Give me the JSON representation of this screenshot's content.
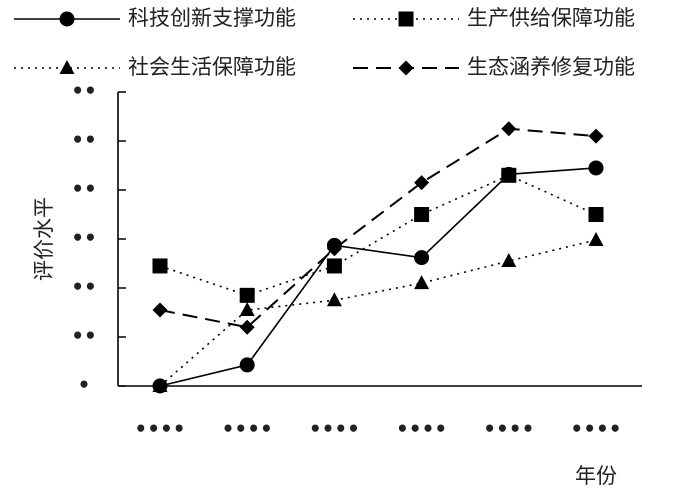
{
  "chart_data": {
    "type": "line",
    "categories": [
      "••••",
      "••••",
      "••••",
      "••••",
      "••••",
      "••••"
    ],
    "xlabel": "年份",
    "ylabel": "评价水平",
    "ytick_labels": [
      "•",
      "••",
      "••",
      "••",
      "••",
      "••",
      "••"
    ],
    "ylim": [
      0,
      6
    ],
    "grid": false,
    "legend_position": "top",
    "series": [
      {
        "name": "科技创新支撑功能",
        "marker": "circle",
        "dash": "solid",
        "values": [
          0.0,
          0.43,
          2.87,
          2.62,
          4.32,
          4.45
        ]
      },
      {
        "name": "生产供给保障功能",
        "marker": "square",
        "dash": "dotted",
        "values": [
          2.45,
          1.85,
          2.45,
          3.5,
          4.3,
          3.5
        ]
      },
      {
        "name": "社会生活保障功能",
        "marker": "triangle",
        "dash": "dotted",
        "values": [
          0.0,
          1.55,
          1.75,
          2.1,
          2.55,
          2.98
        ]
      },
      {
        "name": "生态涵养修复功能",
        "marker": "diamond",
        "dash": "dashed",
        "values": [
          1.55,
          1.2,
          2.8,
          4.15,
          5.25,
          5.1
        ]
      }
    ]
  }
}
